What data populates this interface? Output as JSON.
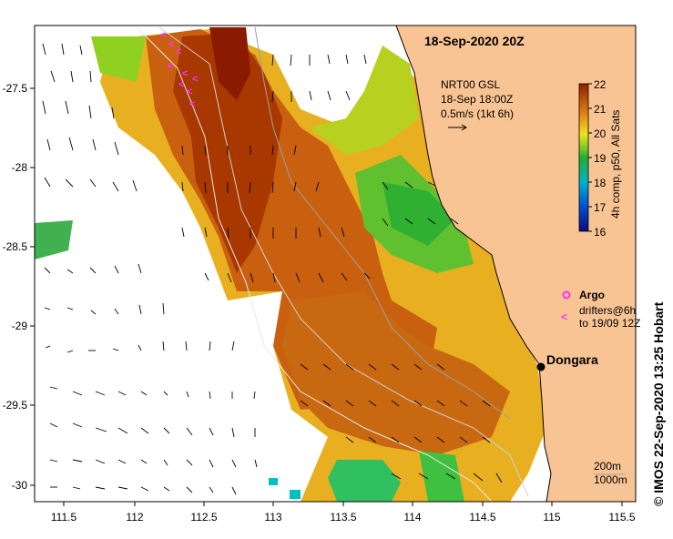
{
  "title": "18-Sep-2020 20Z",
  "current_info": {
    "line1": "NRT00 GSL",
    "line2": "18-Sep 18:00Z",
    "line3": "0.5m/s (1kt 6h)"
  },
  "colorbar": {
    "ticks": [
      "22",
      "21",
      "20",
      "19",
      "18",
      "17",
      "16"
    ],
    "label": "4h comp, p50, All Sats"
  },
  "legend": {
    "argo_label": "Argo",
    "drifters_line1": "drifters@6h",
    "drifters_line2": "to 19/09 12Z"
  },
  "place": {
    "name": "Dongara"
  },
  "isobaths": {
    "line1": "200m",
    "line2": "1000m"
  },
  "credit": "© IMOS 22-Sep-2020 13:25 Hobart",
  "axes": {
    "x_ticks": [
      "111.5",
      "112",
      "112.5",
      "113",
      "113.5",
      "114",
      "114.5",
      "115",
      "115.5"
    ],
    "y_ticks": [
      "-27.5",
      "-28",
      "-28.5",
      "-29",
      "-29.5",
      "-30"
    ]
  },
  "colors": {
    "land": "#f9c493",
    "hot": "#a03000",
    "warm": "#d07010",
    "mid": "#e8b020",
    "cool": "#30b030",
    "cold": "#00c0c0",
    "argo": "#ff30ff"
  }
}
